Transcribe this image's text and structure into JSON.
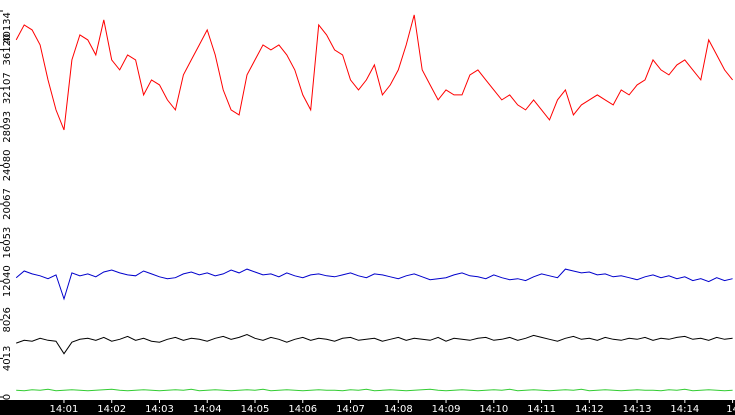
{
  "chart_data": {
    "type": "line",
    "categories": [
      null,
      null,
      null,
      null,
      null,
      null,
      "14:01",
      null,
      null,
      null,
      null,
      null,
      "14:02",
      null,
      null,
      null,
      null,
      null,
      "14:03",
      null,
      null,
      null,
      null,
      null,
      "14:04",
      null,
      null,
      null,
      null,
      null,
      "14:05",
      null,
      null,
      null,
      null,
      null,
      "14:06",
      null,
      null,
      null,
      null,
      null,
      "14:07",
      null,
      null,
      null,
      null,
      null,
      "14:08",
      null,
      null,
      null,
      null,
      null,
      "14:09",
      null,
      null,
      null,
      null,
      null,
      "14:10",
      null,
      null,
      null,
      null,
      null,
      "14:11",
      null,
      null,
      null,
      null,
      null,
      "14:12",
      null,
      null,
      null,
      null,
      null,
      "14:13",
      null,
      null,
      null,
      null,
      null,
      "14:14",
      null,
      null,
      null,
      null,
      null,
      "14"
    ],
    "ylim": [
      0,
      40134
    ],
    "yticks": [
      0,
      4013,
      8026,
      12040,
      16053,
      20067,
      24080,
      28093,
      32107,
      36120,
      40134
    ],
    "series": [
      {
        "color": "#ff0000",
        "values": [
          37128,
          38688,
          38168,
          36608,
          32968,
          29848,
          27768,
          35048,
          37648,
          37128,
          35568,
          39208,
          35048,
          34008,
          35568,
          35048,
          31408,
          32968,
          32448,
          30888,
          29848,
          33488,
          35048,
          36608,
          38168,
          35568,
          31928,
          29848,
          29328,
          33488,
          35048,
          36608,
          36088,
          36608,
          35568,
          34008,
          31408,
          29848,
          38688,
          37648,
          36088,
          35568,
          32968,
          31928,
          32968,
          34528,
          31408,
          32448,
          34008,
          36608,
          39728,
          34008,
          32448,
          30888,
          31928,
          31408,
          31408,
          33488,
          34008,
          32968,
          31928,
          30888,
          31408,
          30368,
          29848,
          30888,
          29848,
          28808,
          30888,
          31928,
          29328,
          30368,
          30888,
          31408,
          30888,
          30368,
          31928,
          31408,
          32448,
          32968,
          35048,
          34008,
          33488,
          34528,
          35048,
          34008,
          32968,
          37128,
          35568,
          34008,
          32968
        ]
      },
      {
        "color": "#0000cc",
        "values": [
          12400,
          13100,
          12800,
          12600,
          12300,
          12700,
          10200,
          12900,
          12600,
          12800,
          12500,
          13000,
          13200,
          12900,
          12700,
          12600,
          13100,
          12800,
          12500,
          12300,
          12400,
          12800,
          13000,
          12700,
          12900,
          12600,
          12800,
          13200,
          12900,
          13300,
          13000,
          12700,
          12800,
          12500,
          12900,
          12600,
          12400,
          12700,
          12800,
          12600,
          12500,
          12700,
          12900,
          12600,
          12400,
          12800,
          12700,
          12500,
          12300,
          12600,
          12800,
          12500,
          12200,
          12300,
          12400,
          12700,
          12900,
          12600,
          12500,
          12300,
          12700,
          12400,
          12200,
          12300,
          12100,
          12500,
          12800,
          12600,
          12400,
          13300,
          13100,
          12900,
          13000,
          12700,
          12800,
          12500,
          12600,
          12400,
          12200,
          12500,
          12700,
          12400,
          12600,
          12300,
          12500,
          12100,
          12300,
          12000,
          12400,
          12100,
          12300
        ]
      },
      {
        "color": "#000000",
        "values": [
          5600,
          5900,
          5800,
          6100,
          5900,
          5800,
          4500,
          5700,
          6000,
          6100,
          5900,
          6200,
          5800,
          6000,
          6300,
          5900,
          6100,
          5800,
          5700,
          6000,
          6200,
          5900,
          6100,
          6000,
          5800,
          6100,
          6300,
          6000,
          6200,
          6500,
          6100,
          5900,
          6200,
          6000,
          5700,
          6000,
          6200,
          5900,
          6100,
          6000,
          5800,
          6100,
          6200,
          5900,
          6000,
          6100,
          5800,
          6000,
          6200,
          5900,
          6100,
          6000,
          5900,
          6200,
          5800,
          6100,
          6000,
          5900,
          6100,
          6200,
          5900,
          6000,
          6200,
          5900,
          6100,
          6400,
          6200,
          6000,
          5800,
          6100,
          6300,
          6000,
          6100,
          5900,
          6200,
          6000,
          5900,
          6100,
          6000,
          6200,
          5900,
          6100,
          6000,
          6200,
          6300,
          6000,
          6100,
          5900,
          6200,
          6000,
          6100
        ]
      },
      {
        "color": "#33cc33",
        "values": [
          700,
          650,
          750,
          700,
          800,
          650,
          700,
          750,
          700,
          650,
          700,
          750,
          800,
          700,
          650,
          700,
          750,
          700,
          650,
          700,
          750,
          700,
          800,
          650,
          700,
          750,
          700,
          650,
          700,
          750,
          700,
          800,
          650,
          700,
          750,
          700,
          650,
          700,
          750,
          700,
          700,
          650,
          750,
          700,
          800,
          650,
          700,
          750,
          700,
          650,
          700,
          750,
          800,
          700,
          650,
          700,
          750,
          700,
          650,
          700,
          750,
          700,
          800,
          650,
          700,
          750,
          700,
          650,
          700,
          750,
          700,
          800,
          650,
          700,
          750,
          700,
          650,
          700,
          750,
          700,
          700,
          650,
          750,
          700,
          800,
          650,
          700,
          750,
          700,
          650,
          700
        ]
      }
    ]
  }
}
